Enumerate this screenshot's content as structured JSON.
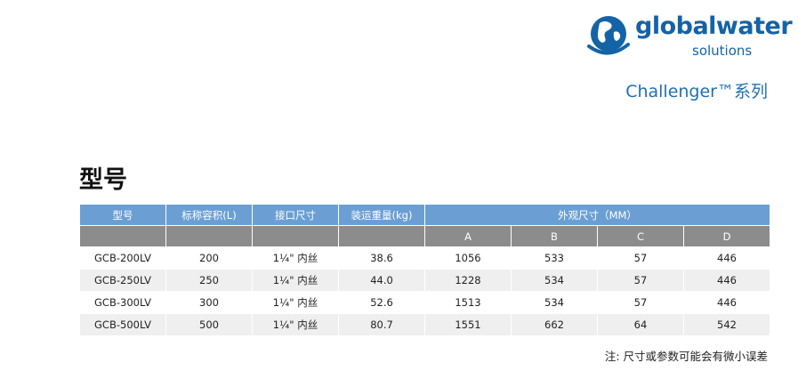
{
  "brand": {
    "name": "globalwater",
    "sub": "solutions",
    "primary_color": "#1463a6"
  },
  "series_title": "Challenger™系列",
  "section_title": "型号",
  "table": {
    "header_color": "#6b9fd4",
    "subheader_color": "#8c8c8c",
    "headers": {
      "model": "型号",
      "capacity": "标称容积(L)",
      "connection": "接口尺寸",
      "weight": "装运重量(kg)",
      "dimensions": "外观尺寸（MM）"
    },
    "dim_cols": [
      "A",
      "B",
      "C",
      "D"
    ],
    "rows": [
      {
        "model": "GCB-200LV",
        "capacity": "200",
        "connection": "1¼\" 内丝",
        "weight": "38.6",
        "a": "1056",
        "b": "533",
        "c": "57",
        "d": "446"
      },
      {
        "model": "GCB-250LV",
        "capacity": "250",
        "connection": "1¼\" 内丝",
        "weight": "44.0",
        "a": "1228",
        "b": "534",
        "c": "57",
        "d": "446"
      },
      {
        "model": "GCB-300LV",
        "capacity": "300",
        "connection": "1¼\" 内丝",
        "weight": "52.6",
        "a": "1513",
        "b": "534",
        "c": "57",
        "d": "446"
      },
      {
        "model": "GCB-500LV",
        "capacity": "500",
        "connection": "1¼\" 内丝",
        "weight": "80.7",
        "a": "1551",
        "b": "662",
        "c": "64",
        "d": "542"
      }
    ]
  },
  "note": "注: 尺寸或参数可能会有微小误差"
}
